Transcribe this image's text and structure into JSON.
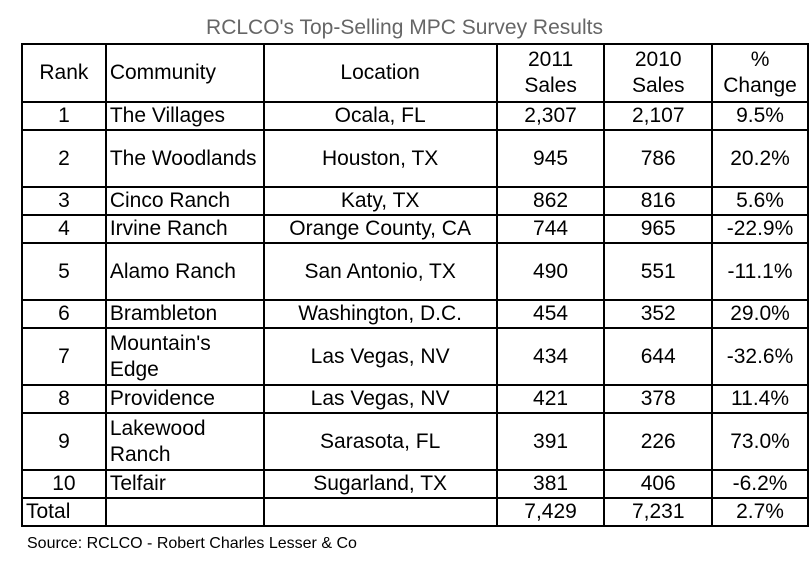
{
  "chart_data": {
    "type": "table",
    "title": "RCLCO's Top-Selling MPC Survey Results",
    "columns": [
      {
        "key": "rank",
        "label": "Rank"
      },
      {
        "key": "community",
        "label": "Community"
      },
      {
        "key": "location",
        "label": "Location"
      },
      {
        "key": "sales_2011",
        "label": "2011 Sales"
      },
      {
        "key": "sales_2010",
        "label": "2010 Sales"
      },
      {
        "key": "change",
        "label": "% Change"
      }
    ],
    "rows": [
      {
        "rank": "1",
        "community": "The Villages",
        "location": "Ocala, FL",
        "sales_2011": "2,307",
        "sales_2010": "2,107",
        "change": "9.5%"
      },
      {
        "rank": "2",
        "community": "The Woodlands",
        "location": "Houston, TX",
        "sales_2011": "945",
        "sales_2010": "786",
        "change": "20.2%"
      },
      {
        "rank": "3",
        "community": "Cinco Ranch",
        "location": "Katy, TX",
        "sales_2011": "862",
        "sales_2010": "816",
        "change": "5.6%"
      },
      {
        "rank": "4",
        "community": "Irvine Ranch",
        "location": "Orange County, CA",
        "sales_2011": "744",
        "sales_2010": "965",
        "change": "-22.9%"
      },
      {
        "rank": "5",
        "community": "Alamo Ranch",
        "location": "San Antonio, TX",
        "sales_2011": "490",
        "sales_2010": "551",
        "change": "-11.1%"
      },
      {
        "rank": "6",
        "community": "Brambleton",
        "location": "Washington, D.C.",
        "sales_2011": "454",
        "sales_2010": "352",
        "change": "29.0%"
      },
      {
        "rank": "7",
        "community": "Mountain's Edge",
        "location": "Las Vegas, NV",
        "sales_2011": "434",
        "sales_2010": "644",
        "change": "-32.6%"
      },
      {
        "rank": "8",
        "community": "Providence",
        "location": "Las Vegas, NV",
        "sales_2011": "421",
        "sales_2010": "378",
        "change": "11.4%"
      },
      {
        "rank": "9",
        "community": "Lakewood Ranch",
        "location": "Sarasota, FL",
        "sales_2011": "391",
        "sales_2010": "226",
        "change": "73.0%"
      },
      {
        "rank": "10",
        "community": "Telfair",
        "location": "Sugarland, TX",
        "sales_2011": "381",
        "sales_2010": "406",
        "change": "-6.2%"
      }
    ],
    "total": {
      "label": "Total",
      "sales_2011": "7,429",
      "sales_2010": "7,231",
      "change": "2.7%"
    }
  },
  "source": "Source: RCLCO - Robert Charles Lesser & Co"
}
